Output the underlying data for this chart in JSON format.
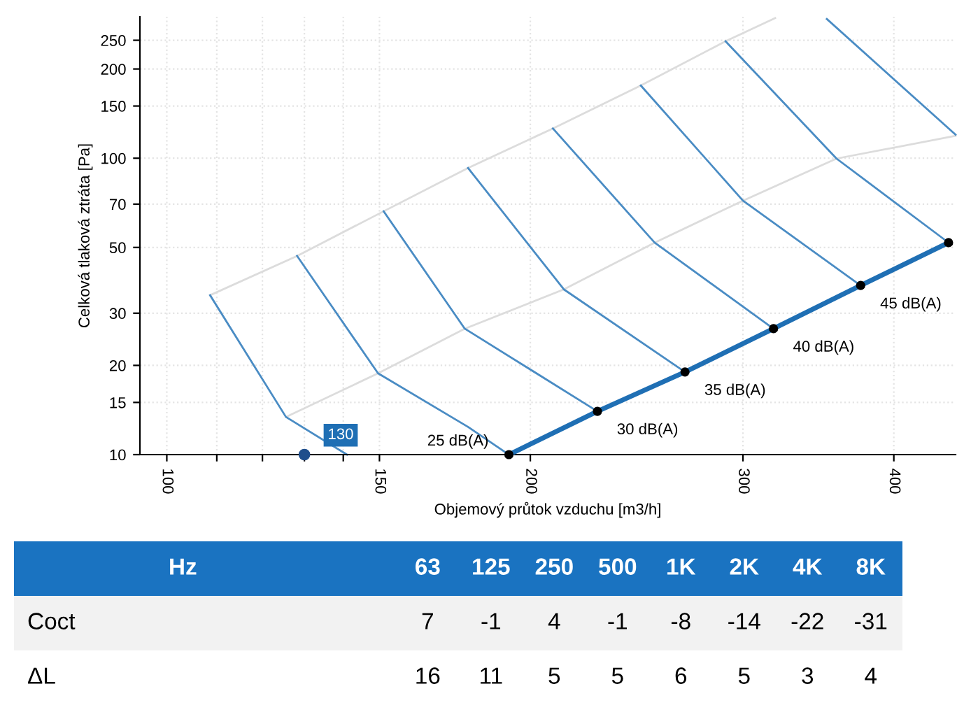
{
  "chart_data": [
    {
      "type": "line",
      "xlabel": "Objemový průtok vzduchu [m3/h]",
      "ylabel": "Celková tlaková ztráta [Pa]",
      "log": "xy",
      "grid": true,
      "xlim": [
        95,
        450
      ],
      "xticks": [
        100,
        {
          "value": 110,
          "label": null
        },
        {
          "value": 120,
          "label": null
        },
        {
          "value": 130,
          "label": null
        },
        {
          "value": 140,
          "label": null
        },
        150,
        200,
        300,
        400
      ],
      "ylim": [
        10,
        300
      ],
      "yticks": [
        10,
        15,
        20,
        30,
        50,
        70,
        100,
        150,
        200,
        250
      ],
      "series": [
        {
          "color": "#dcdcdc",
          "x": [
            108.6,
            128.2,
            151.2,
            177.6,
            208.8,
            246.9,
            290.2,
            319
          ],
          "values": [
            34.5,
            46.8,
            66.2,
            92.7,
            126,
            175.9,
            248,
            297
          ]
        },
        {
          "color": "#dcdcdc",
          "x": [
            125.5,
            149.6,
            176.5,
            213.2,
            253.5,
            300,
            358.6,
            450
          ],
          "values": [
            13.4,
            18.8,
            26.6,
            36.1,
            51.9,
            71.9,
            99.7,
            119
          ]
        },
        {
          "color": "#4a8cc4",
          "x": [
            108.6,
            125.5,
            141
          ],
          "values": [
            34.5,
            13.4,
            10
          ]
        },
        {
          "color": "#4a8cc4",
          "x": [
            128.2,
            149.6,
            177.6,
            192
          ],
          "values": [
            46.8,
            18.8,
            12.4,
            10
          ]
        },
        {
          "color": "#4a8cc4",
          "x": [
            151.2,
            176.5,
            227.3
          ],
          "values": [
            66.2,
            26.6,
            14.0
          ]
        },
        {
          "color": "#4a8cc4",
          "x": [
            177.6,
            213.2,
            268.6
          ],
          "values": [
            92.7,
            36.1,
            19.0
          ]
        },
        {
          "color": "#4a8cc4",
          "x": [
            208.8,
            253.5,
            318
          ],
          "values": [
            126,
            51.9,
            26.6
          ]
        },
        {
          "color": "#4a8cc4",
          "x": [
            246.9,
            300,
            375.5
          ],
          "values": [
            175.9,
            71.9,
            37.2
          ]
        },
        {
          "color": "#4a8cc4",
          "x": [
            290.2,
            358.6,
            444
          ],
          "values": [
            248,
            99.7,
            51.9
          ]
        },
        {
          "color": "#4a8cc4",
          "x": [
            352,
            450
          ],
          "values": [
            295,
            120
          ]
        },
        {
          "color": "#1f6fb4",
          "x": [
            192,
            227.3,
            268.6,
            318,
            375.5,
            444
          ],
          "values": [
            10,
            14.0,
            19.0,
            26.6,
            37.2,
            51.9
          ]
        },
        {
          "type": "scatter",
          "color": "#000000",
          "x": [
            192,
            227.3,
            268.6,
            318,
            375.5,
            444
          ],
          "values": [
            10,
            14.0,
            19.0,
            26.6,
            37.2,
            51.9
          ]
        },
        {
          "type": "scatter",
          "color": "#1f4e8c",
          "x": [
            130
          ],
          "values": [
            10
          ]
        }
      ],
      "annotations": [
        {
          "text": "130",
          "x": 130,
          "y": 10
        },
        {
          "text": "25 dB(A)",
          "x": 192,
          "y": 10
        },
        {
          "text": "30 dB(A)",
          "x": 227.3,
          "y": 14.0
        },
        {
          "text": "35 dB(A)",
          "x": 268.6,
          "y": 19.0
        },
        {
          "text": "40 dB(A)",
          "x": 318,
          "y": 26.6
        },
        {
          "text": "45 dB(A)",
          "x": 375.5,
          "y": 37.2
        }
      ]
    },
    {
      "type": "other",
      "xlabel": "Hz",
      "categories": [
        "63",
        "125",
        "250",
        "500",
        "1K",
        "2K",
        "4K",
        "8K"
      ],
      "data_labels": true,
      "series": [
        {
          "name": "Coct",
          "values": [
            7,
            -1,
            4,
            -1,
            -8,
            -14,
            -22,
            -31
          ]
        },
        {
          "name": "ΔL",
          "values": [
            16,
            11,
            5,
            5,
            6,
            5,
            3,
            4
          ]
        }
      ]
    }
  ]
}
